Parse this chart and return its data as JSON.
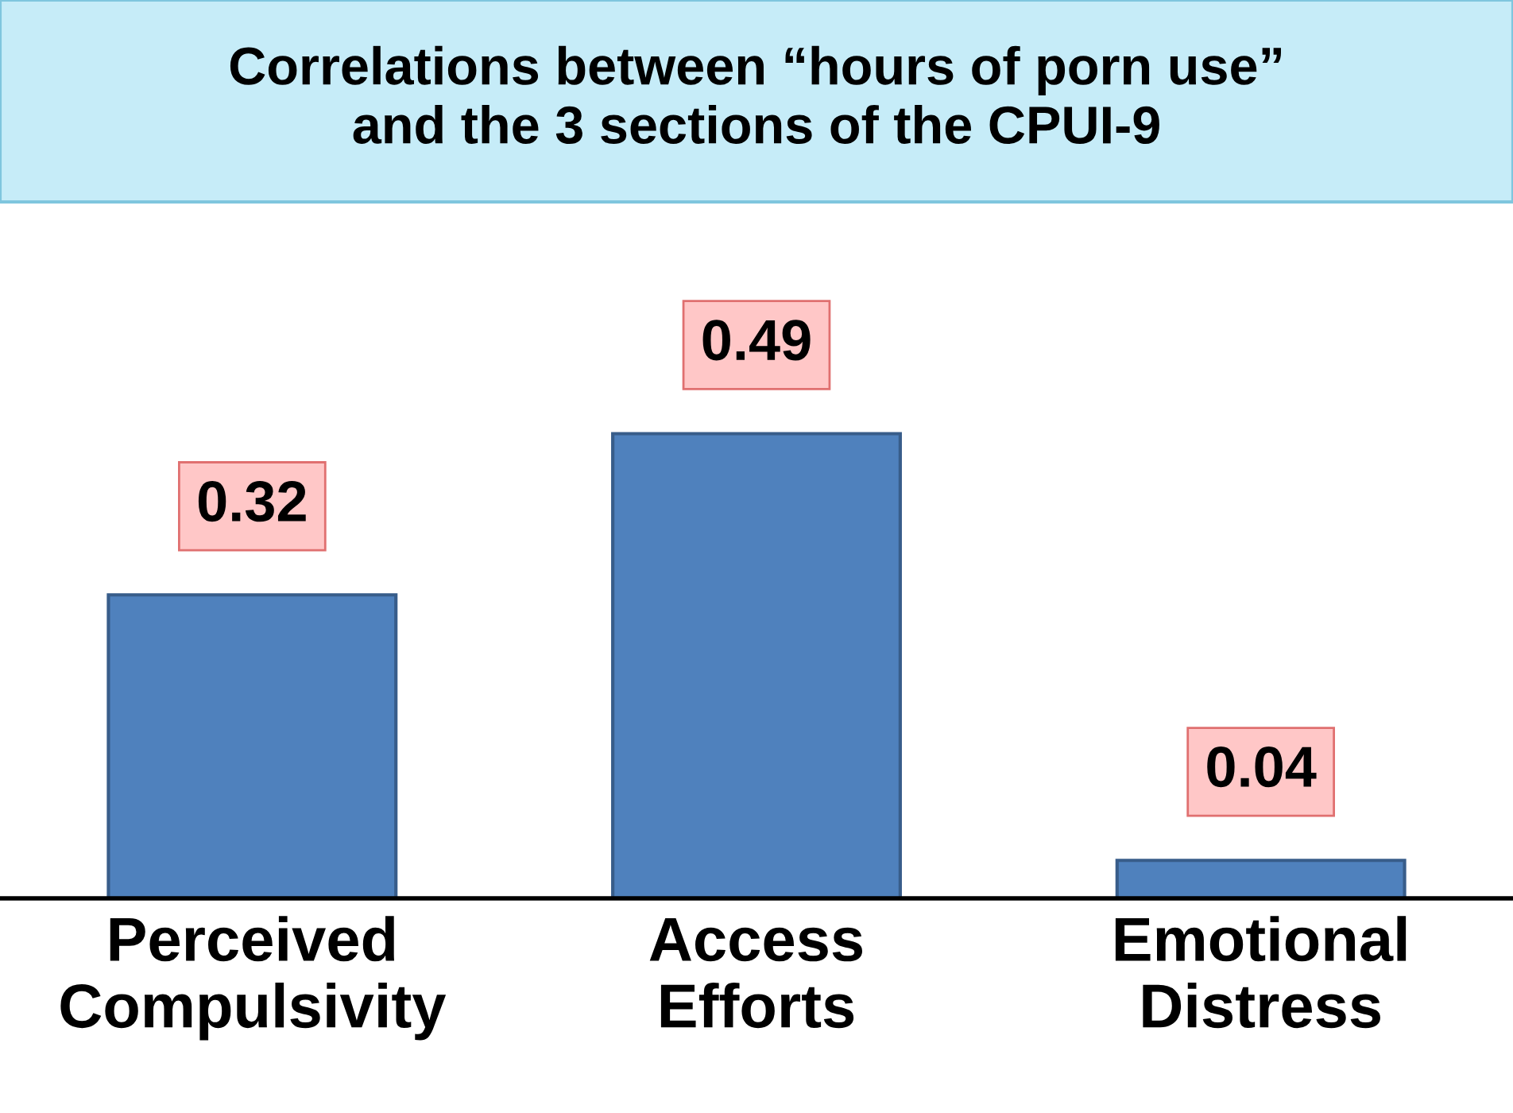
{
  "chart_data": {
    "type": "bar",
    "title": "Correlations between “hours of porn use”\nand the 3 sections of the CPUI-9",
    "categories": [
      "Perceived\nCompulsivity",
      "Access\nEfforts",
      "Emotional\nDistress"
    ],
    "values": [
      0.32,
      0.49,
      0.04
    ],
    "color": "#4f81bd",
    "data_labels": true,
    "grid": false,
    "legend": false
  }
}
